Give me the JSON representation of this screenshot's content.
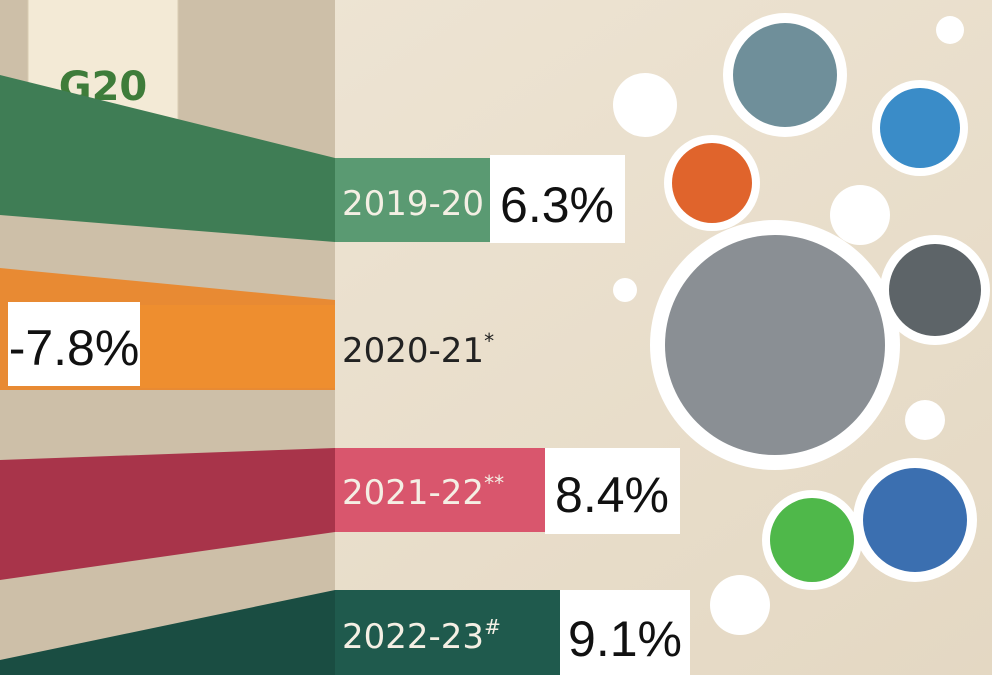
{
  "logo": {
    "text": "G20"
  },
  "rows": [
    {
      "year": "2019-20",
      "mark": "",
      "value": "6.3%"
    },
    {
      "year": "2020-21",
      "mark": "*",
      "value": "-7.8%"
    },
    {
      "year": "2021-22",
      "mark": "**",
      "value": "8.4%"
    },
    {
      "year": "2022-23",
      "mark": "#",
      "value": "9.1%"
    }
  ]
}
